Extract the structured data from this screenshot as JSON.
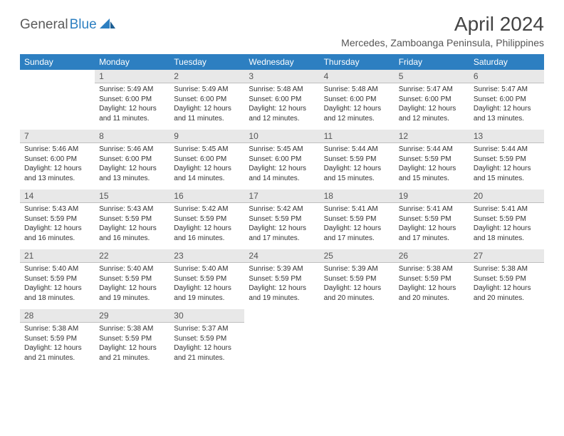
{
  "logo": {
    "part1": "General",
    "part2": "Blue"
  },
  "title": "April 2024",
  "location": "Mercedes, Zamboanga Peninsula, Philippines",
  "header_bg": "#2d7fc1",
  "header_fg": "#ffffff",
  "daybar_bg": "#e8e8e8",
  "daybar_border": "#bfbfbf",
  "weekdays": [
    "Sunday",
    "Monday",
    "Tuesday",
    "Wednesday",
    "Thursday",
    "Friday",
    "Saturday"
  ],
  "weeks": [
    [
      null,
      {
        "n": "1",
        "sr": "5:49 AM",
        "ss": "6:00 PM",
        "dh": "12",
        "dm": "11"
      },
      {
        "n": "2",
        "sr": "5:49 AM",
        "ss": "6:00 PM",
        "dh": "12",
        "dm": "11"
      },
      {
        "n": "3",
        "sr": "5:48 AM",
        "ss": "6:00 PM",
        "dh": "12",
        "dm": "12"
      },
      {
        "n": "4",
        "sr": "5:48 AM",
        "ss": "6:00 PM",
        "dh": "12",
        "dm": "12"
      },
      {
        "n": "5",
        "sr": "5:47 AM",
        "ss": "6:00 PM",
        "dh": "12",
        "dm": "12"
      },
      {
        "n": "6",
        "sr": "5:47 AM",
        "ss": "6:00 PM",
        "dh": "12",
        "dm": "13"
      }
    ],
    [
      {
        "n": "7",
        "sr": "5:46 AM",
        "ss": "6:00 PM",
        "dh": "12",
        "dm": "13"
      },
      {
        "n": "8",
        "sr": "5:46 AM",
        "ss": "6:00 PM",
        "dh": "12",
        "dm": "13"
      },
      {
        "n": "9",
        "sr": "5:45 AM",
        "ss": "6:00 PM",
        "dh": "12",
        "dm": "14"
      },
      {
        "n": "10",
        "sr": "5:45 AM",
        "ss": "6:00 PM",
        "dh": "12",
        "dm": "14"
      },
      {
        "n": "11",
        "sr": "5:44 AM",
        "ss": "5:59 PM",
        "dh": "12",
        "dm": "15"
      },
      {
        "n": "12",
        "sr": "5:44 AM",
        "ss": "5:59 PM",
        "dh": "12",
        "dm": "15"
      },
      {
        "n": "13",
        "sr": "5:44 AM",
        "ss": "5:59 PM",
        "dh": "12",
        "dm": "15"
      }
    ],
    [
      {
        "n": "14",
        "sr": "5:43 AM",
        "ss": "5:59 PM",
        "dh": "12",
        "dm": "16"
      },
      {
        "n": "15",
        "sr": "5:43 AM",
        "ss": "5:59 PM",
        "dh": "12",
        "dm": "16"
      },
      {
        "n": "16",
        "sr": "5:42 AM",
        "ss": "5:59 PM",
        "dh": "12",
        "dm": "16"
      },
      {
        "n": "17",
        "sr": "5:42 AM",
        "ss": "5:59 PM",
        "dh": "12",
        "dm": "17"
      },
      {
        "n": "18",
        "sr": "5:41 AM",
        "ss": "5:59 PM",
        "dh": "12",
        "dm": "17"
      },
      {
        "n": "19",
        "sr": "5:41 AM",
        "ss": "5:59 PM",
        "dh": "12",
        "dm": "17"
      },
      {
        "n": "20",
        "sr": "5:41 AM",
        "ss": "5:59 PM",
        "dh": "12",
        "dm": "18"
      }
    ],
    [
      {
        "n": "21",
        "sr": "5:40 AM",
        "ss": "5:59 PM",
        "dh": "12",
        "dm": "18"
      },
      {
        "n": "22",
        "sr": "5:40 AM",
        "ss": "5:59 PM",
        "dh": "12",
        "dm": "19"
      },
      {
        "n": "23",
        "sr": "5:40 AM",
        "ss": "5:59 PM",
        "dh": "12",
        "dm": "19"
      },
      {
        "n": "24",
        "sr": "5:39 AM",
        "ss": "5:59 PM",
        "dh": "12",
        "dm": "19"
      },
      {
        "n": "25",
        "sr": "5:39 AM",
        "ss": "5:59 PM",
        "dh": "12",
        "dm": "20"
      },
      {
        "n": "26",
        "sr": "5:38 AM",
        "ss": "5:59 PM",
        "dh": "12",
        "dm": "20"
      },
      {
        "n": "27",
        "sr": "5:38 AM",
        "ss": "5:59 PM",
        "dh": "12",
        "dm": "20"
      }
    ],
    [
      {
        "n": "28",
        "sr": "5:38 AM",
        "ss": "5:59 PM",
        "dh": "12",
        "dm": "21"
      },
      {
        "n": "29",
        "sr": "5:38 AM",
        "ss": "5:59 PM",
        "dh": "12",
        "dm": "21"
      },
      {
        "n": "30",
        "sr": "5:37 AM",
        "ss": "5:59 PM",
        "dh": "12",
        "dm": "21"
      },
      null,
      null,
      null,
      null
    ]
  ],
  "labels": {
    "sunrise": "Sunrise:",
    "sunset": "Sunset:",
    "daylight_prefix": "Daylight:",
    "hours_word": "hours",
    "and_word": "and",
    "minutes_word": "minutes."
  }
}
